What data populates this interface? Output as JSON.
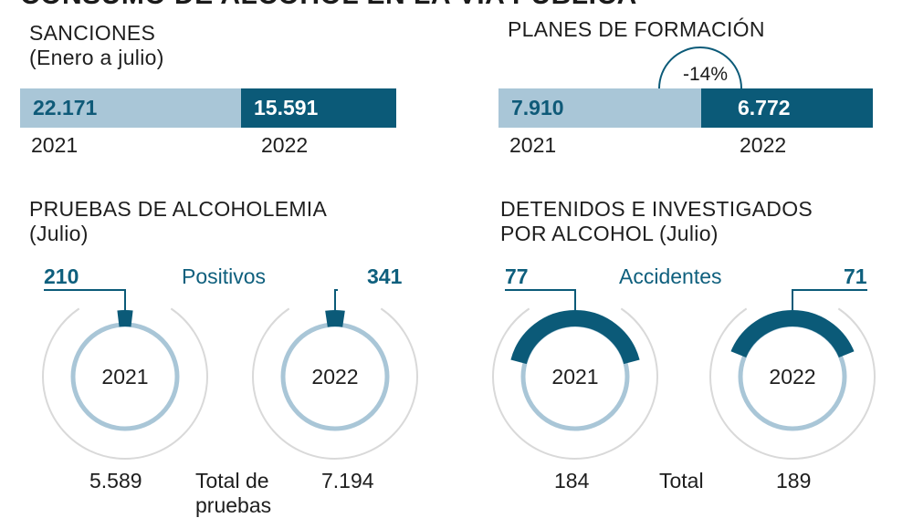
{
  "header": {
    "title": "CONSUMO DE ALCOHOL EN LA VÍA PÚBLICA"
  },
  "colors": {
    "light": "#a9c6d7",
    "dark": "#0b5a78",
    "ring": "#d9d9d9",
    "text": "#1e1e1e"
  },
  "sanciones": {
    "title": "SANCIONES",
    "subtitle": "(Enero a julio)",
    "values": [
      "22.171",
      "15.591"
    ],
    "years": [
      "2021",
      "2022"
    ]
  },
  "formacion": {
    "title": "PLANES DE FORMACIÓN",
    "change": "-14%",
    "values": [
      "7.910",
      "6.772"
    ],
    "years": [
      "2021",
      "2022"
    ]
  },
  "pruebas": {
    "title": "PRUEBAS DE ALCOHOLEMIA",
    "subtitle": "(Julio)",
    "label": "Positivos",
    "positivos": [
      "210",
      "341"
    ],
    "totals": [
      "5.589",
      "7.194"
    ],
    "total_label_1": "Total de",
    "total_label_2": "pruebas",
    "years": [
      "2021",
      "2022"
    ]
  },
  "detenidos": {
    "title_1": "DETENIDOS E INVESTIGADOS",
    "title_2": "POR ALCOHOL (Julio)",
    "label": "Accidentes",
    "accidentes": [
      "77",
      "71"
    ],
    "totals": [
      "184",
      "189"
    ],
    "total_label": "Total",
    "years": [
      "2021",
      "2022"
    ]
  },
  "chart_data": [
    {
      "type": "bar",
      "title": "SANCIONES",
      "subtitle": "(Enero a julio)",
      "categories": [
        "2021",
        "2022"
      ],
      "values": [
        22171,
        15591
      ]
    },
    {
      "type": "bar",
      "title": "PLANES DE FORMACIÓN",
      "categories": [
        "2021",
        "2022"
      ],
      "values": [
        7910,
        6772
      ],
      "annotation": "-14%"
    },
    {
      "type": "pie",
      "title": "PRUEBAS DE ALCOHOLEMIA",
      "subtitle": "(Julio)",
      "categories": [
        "2021",
        "2022"
      ],
      "series": [
        {
          "name": "Positivos",
          "values": [
            210,
            341
          ]
        }
      ],
      "totals": [
        5589,
        7194
      ]
    },
    {
      "type": "pie",
      "title": "DETENIDOS E INVESTIGADOS POR ALCOHOL (Julio)",
      "categories": [
        "2021",
        "2022"
      ],
      "series": [
        {
          "name": "Accidentes",
          "values": [
            77,
            71
          ]
        }
      ],
      "totals": [
        184,
        189
      ]
    }
  ]
}
